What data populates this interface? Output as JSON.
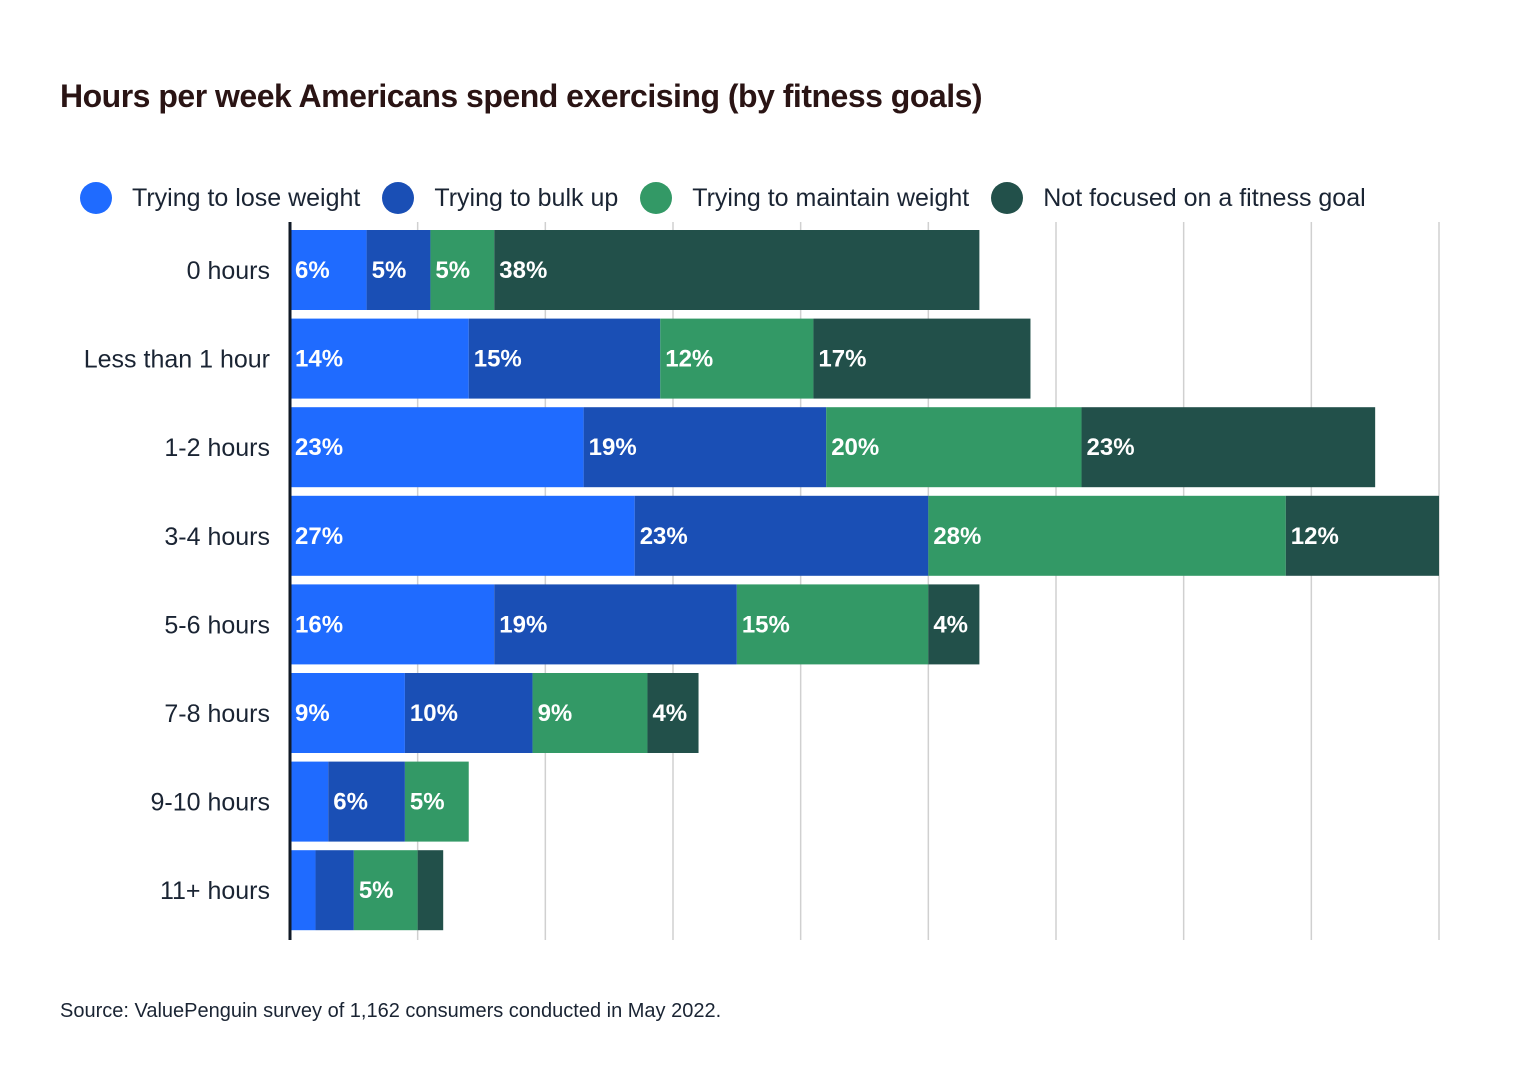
{
  "chart_data": {
    "type": "bar",
    "orientation": "horizontal",
    "stacked": true,
    "title": "Hours per week Americans spend exercising (by fitness goals)",
    "categories": [
      "0 hours",
      "Less than 1 hour",
      "1-2 hours",
      "3-4 hours",
      "5-6 hours",
      "7-8 hours",
      "9-10 hours",
      "11+ hours"
    ],
    "series": [
      {
        "name": "Trying to lose weight",
        "color": "#1f6bff",
        "values": [
          6,
          14,
          23,
          27,
          16,
          9,
          3,
          2
        ],
        "labels": [
          "6%",
          "14%",
          "23%",
          "27%",
          "16%",
          "9%",
          "",
          ""
        ]
      },
      {
        "name": "Trying to bulk up",
        "color": "#1a4fb5",
        "values": [
          5,
          15,
          19,
          23,
          19,
          10,
          6,
          3
        ],
        "labels": [
          "5%",
          "15%",
          "19%",
          "23%",
          "19%",
          "10%",
          "6%",
          ""
        ]
      },
      {
        "name": "Trying to maintain weight",
        "color": "#339966",
        "values": [
          5,
          12,
          20,
          28,
          15,
          9,
          5,
          5
        ],
        "labels": [
          "5%",
          "12%",
          "20%",
          "28%",
          "15%",
          "9%",
          "5%",
          "5%"
        ]
      },
      {
        "name": "Not focused on a fitness goal",
        "color": "#22504a",
        "values": [
          38,
          17,
          23,
          12,
          4,
          4,
          0,
          2
        ],
        "labels": [
          "38%",
          "17%",
          "23%",
          "12%",
          "4%",
          "4%",
          "",
          ""
        ]
      }
    ],
    "xlim": [
      0,
      90
    ],
    "grid": true,
    "legend_position": "top",
    "source": "Source: ValuePenguin survey of 1,162 consumers conducted in May 2022."
  }
}
